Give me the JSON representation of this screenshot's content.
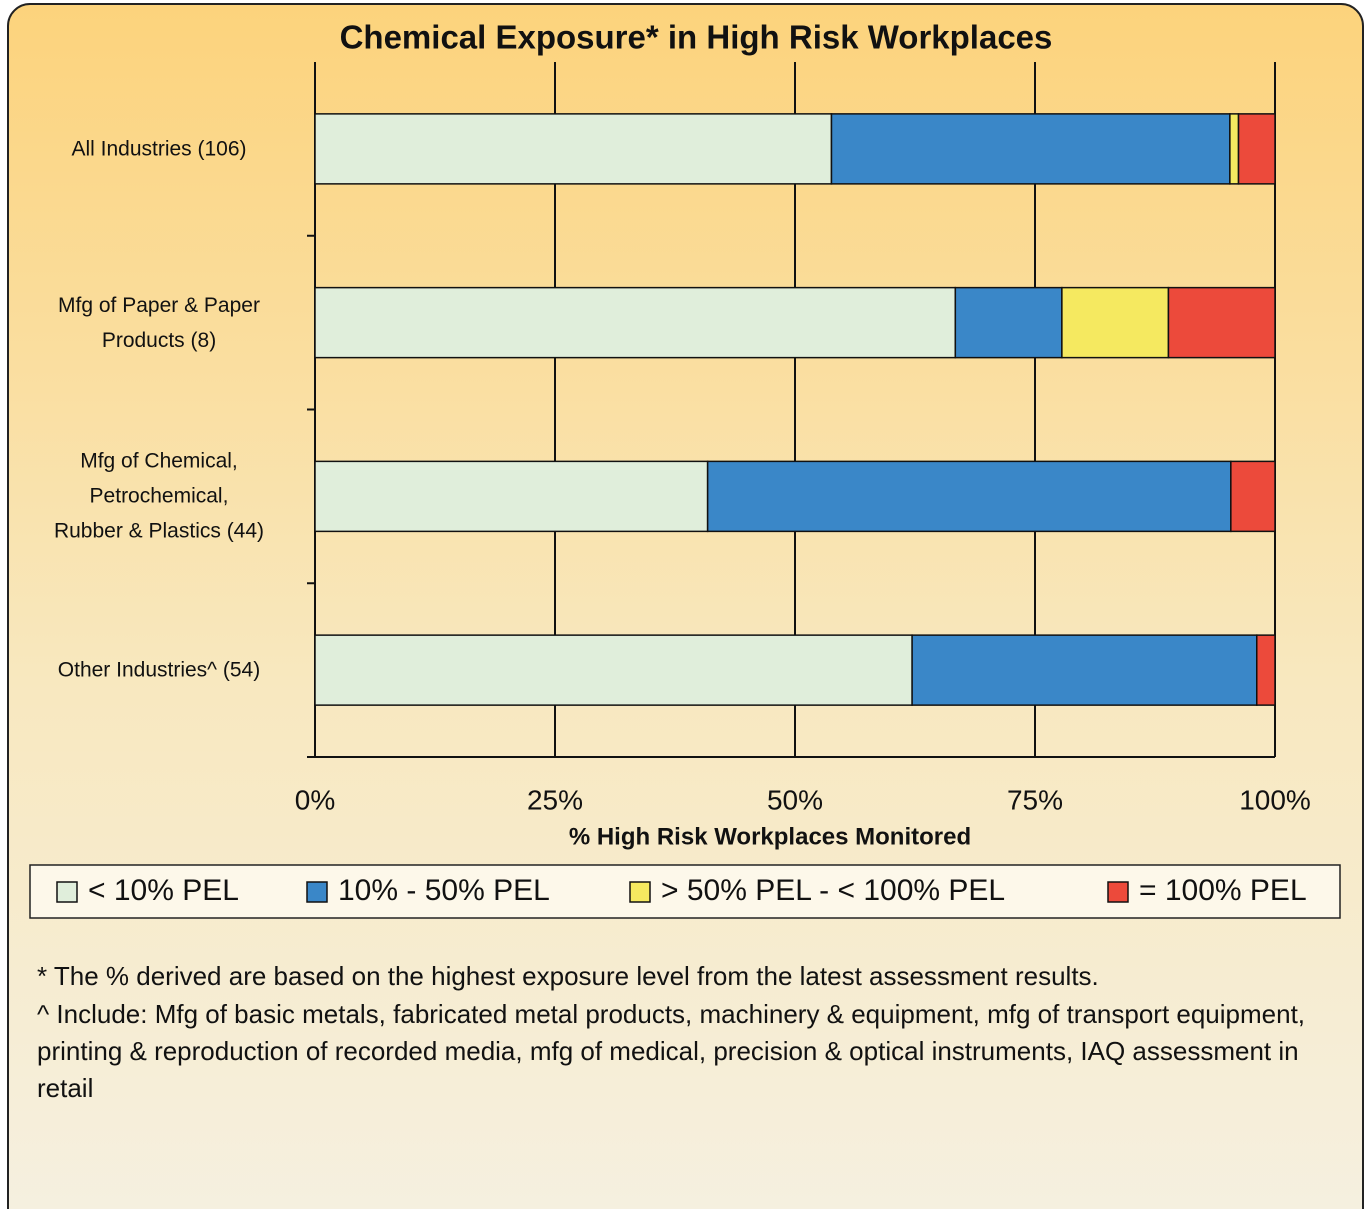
{
  "chart_data": {
    "type": "bar",
    "orientation": "horizontal",
    "stacked": true,
    "title": "Chemical Exposure* in High Risk Workplaces",
    "x_label": "% High Risk Workplaces Monitored",
    "categories": [
      "All Industries (106)",
      "Mfg of Paper & Paper\nProducts (8)",
      "Mfg of Chemical,\nPetrochemical,\nRubber & Plastics (44)",
      "Other Industries^ (54)"
    ],
    "series": [
      {
        "name": "< 10% PEL",
        "color": "#e0eedb",
        "values": [
          53.8,
          66.7,
          40.9,
          62.2
        ]
      },
      {
        "name": "10% - 50% PEL",
        "color": "#3a87c8",
        "values": [
          41.5,
          11.1,
          54.5,
          35.9
        ]
      },
      {
        "name": "> 50% PEL - < 100% PEL",
        "color": "#f5e960",
        "values": [
          0.9,
          11.1,
          0,
          0
        ]
      },
      {
        "name": "= 100% PEL",
        "color": "#ec4a3b",
        "values": [
          3.8,
          11.1,
          4.6,
          1.9
        ]
      }
    ],
    "xlim": [
      0,
      100
    ],
    "xticks": [
      {
        "value": 0,
        "label": "0%"
      },
      {
        "value": 25,
        "label": "25%"
      },
      {
        "value": 50,
        "label": "50%"
      },
      {
        "value": 75,
        "label": "75%"
      },
      {
        "value": 100,
        "label": "100%"
      }
    ],
    "grid": true,
    "legend": "bottom"
  },
  "notes": [
    "* The % derived are based on the highest exposure level from the latest assessment results.",
    "^ Include: Mfg of basic metals, fabricated metal products, machinery & equipment, mfg of transport equipment, printing & reproduction of recorded media, mfg of medical, precision & optical instruments, IAQ assessment in retail"
  ]
}
